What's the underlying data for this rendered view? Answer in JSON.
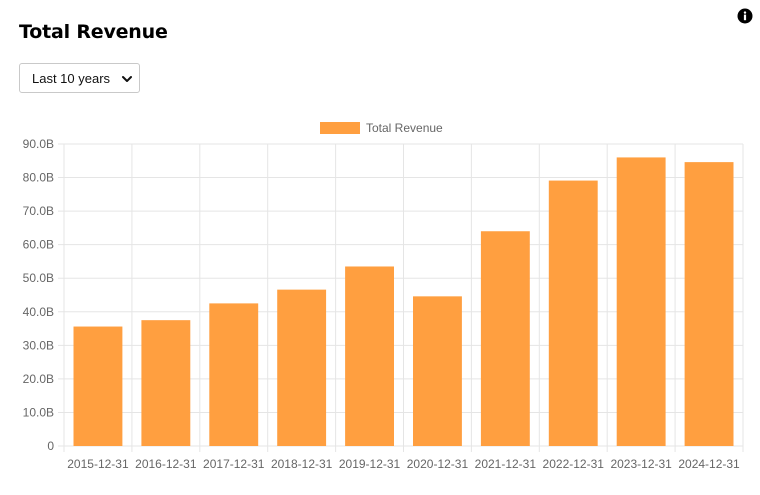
{
  "header": {
    "title": "Total Revenue",
    "info_icon": "info-icon"
  },
  "range_select": {
    "value": "Last 10 years",
    "icon": "chevron-down-icon"
  },
  "colors": {
    "bar": "#ff9f40",
    "grid": "#e5e5e5",
    "axis_text": "#666666"
  },
  "chart_data": {
    "type": "bar",
    "categories": [
      "2015-12-31",
      "2016-12-31",
      "2017-12-31",
      "2018-12-31",
      "2019-12-31",
      "2020-12-31",
      "2021-12-31",
      "2022-12-31",
      "2023-12-31",
      "2024-12-31"
    ],
    "series": [
      {
        "name": "Total Revenue",
        "values": [
          35.6,
          37.5,
          42.5,
          46.6,
          53.5,
          44.6,
          64.0,
          79.1,
          86.0,
          84.6
        ]
      }
    ],
    "value_unit": "B",
    "ylim": [
      0,
      90
    ],
    "ytick_labels": [
      "0",
      "10.0B",
      "20.0B",
      "30.0B",
      "40.0B",
      "50.0B",
      "60.0B",
      "70.0B",
      "80.0B",
      "90.0B"
    ],
    "grid": true,
    "legend_position": "top-center"
  }
}
